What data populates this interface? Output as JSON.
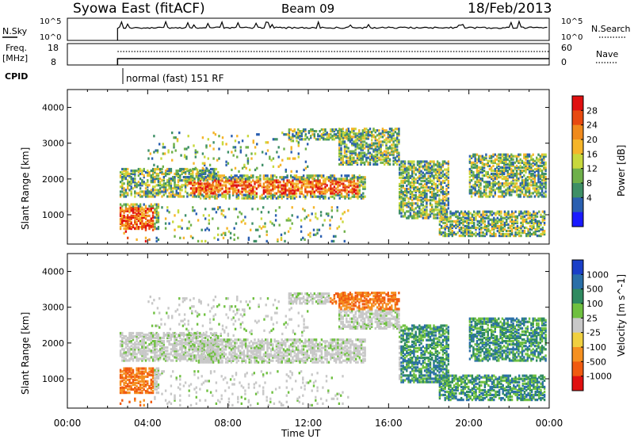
{
  "header": {
    "station": "Syowa East (fitACF)",
    "beam": "Beam 09",
    "date": "18/Feb/2013"
  },
  "top_panels": {
    "nsky_label": "N.Sky",
    "nsearch_label": "N.Search",
    "nsky_ticks": [
      "10^5",
      "10^0"
    ],
    "nsearch_ticks": [
      "10^5",
      "10^0"
    ],
    "freq_label_1": "Freq.",
    "freq_label_2": "[MHz]",
    "freq_ticks": [
      "18",
      "8"
    ],
    "nave_label": "Nave",
    "nave_ticks": [
      "60",
      "0"
    ],
    "cpid_label": "CPID",
    "cpid_value": "normal (fast) 151 RF"
  },
  "chart_data": [
    {
      "type": "heatmap",
      "name": "power-panel",
      "ylabel": "Slant Range [km]",
      "y_ticks": [
        "1000",
        "2000",
        "3000",
        "4000"
      ],
      "ylim": [
        180,
        4500
      ],
      "xlim": [
        0,
        24
      ],
      "colorbar_label": "Power [dB]",
      "colorbar_ticks": [
        "4",
        "8",
        "12",
        "16",
        "20",
        "24",
        "28"
      ],
      "colorbar_colors": [
        "#1a1aff",
        "#2a5fb0",
        "#3e8f66",
        "#6fb04a",
        "#c8d83c",
        "#f5b52a",
        "#f08a1c",
        "#e84a10",
        "#e01010"
      ],
      "data_start_hour": 2.5
    },
    {
      "type": "heatmap",
      "name": "velocity-panel",
      "ylabel": "Slant Range [km]",
      "y_ticks": [
        "1000",
        "2000",
        "3000",
        "4000"
      ],
      "ylim": [
        180,
        4500
      ],
      "xlim": [
        0,
        24
      ],
      "colorbar_label": "Velocity [m s^-1]",
      "colorbar_ticks": [
        "1000",
        "500",
        "100",
        "25",
        "-25",
        "-100",
        "-500",
        "-1000"
      ],
      "colorbar_colors": [
        "#1a3fc8",
        "#2a6fa8",
        "#2f8a60",
        "#6fc040",
        "#c8c8c8",
        "#f0d040",
        "#f59020",
        "#f05a10",
        "#e01010"
      ],
      "data_start_hour": 2.5
    }
  ],
  "x_axis": {
    "label": "Time UT",
    "ticks": [
      "00:00",
      "04:00",
      "08:00",
      "12:00",
      "16:00",
      "20:00",
      "00:00"
    ]
  }
}
